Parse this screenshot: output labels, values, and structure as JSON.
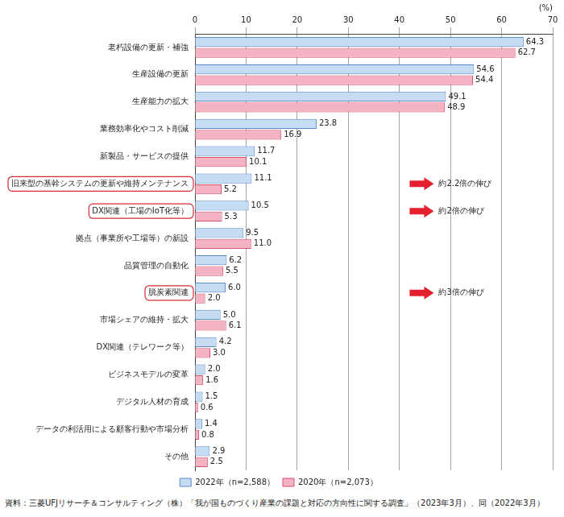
{
  "chart_data": {
    "type": "bar",
    "orientation": "horizontal",
    "xlabel": "(%)",
    "categories": [
      "老朽設備の更新・補強",
      "生産設備の更新",
      "生産能力の拡大",
      "業務効率化やコスト削減",
      "新製品・サービスの提供",
      "旧来型の基幹システムの更新や維持メンテナンス",
      "DX関連（工場のIoT化等）",
      "拠点（事業所や工場等）の新設",
      "品質管理の自動化",
      "脱炭素関連",
      "市場シェアの維持・拡大",
      "DX関連（テレワーク等）",
      "ビジネスモデルの変革",
      "デジタル人材の育成",
      "データの利活用による顧客行動や市場分析",
      "その他"
    ],
    "series": [
      {
        "name": "2022年（n=2,588）",
        "color": "#c6dcf3",
        "values": [
          64.3,
          54.6,
          49.1,
          23.8,
          11.7,
          11.1,
          10.5,
          9.5,
          6.2,
          6.0,
          5.0,
          4.2,
          2.0,
          1.5,
          1.4,
          2.9
        ],
        "value_labels": [
          "64.3",
          "54.6",
          "49.1",
          "23.8",
          "11.7",
          "11.1",
          "10.5",
          "9.5",
          "6.2",
          "6.0",
          "5.0",
          "4.2",
          "2.0",
          "1.5",
          "1.4",
          "2.9"
        ]
      },
      {
        "name": "2020年（n=2,073）",
        "color": "#f4b3c2",
        "values": [
          62.7,
          54.4,
          48.9,
          16.9,
          10.1,
          5.2,
          5.3,
          11.0,
          5.5,
          2.0,
          6.1,
          3.0,
          1.6,
          0.6,
          0.8,
          2.5
        ],
        "value_labels": [
          "62.7",
          "54.4",
          "48.9",
          "16.9",
          "10.1",
          "5.2",
          "5.3",
          "11.0",
          "5.5",
          "2.0",
          "6.1",
          "3.0",
          "1.6",
          "0.6",
          "0.8",
          "2.5"
        ]
      }
    ],
    "xlim": [
      0,
      70
    ],
    "xticks": [
      0,
      10,
      20,
      30,
      40,
      50,
      60,
      70
    ],
    "grid": true,
    "legend": "bottom",
    "data_labels": true,
    "annotations": [
      {
        "category": "旧来型の基幹システムの更新や維持メンテナンス",
        "text": "約2.2倍の伸び"
      },
      {
        "category": "DX関連（工場のIoT化等）",
        "text": "約2倍の伸び"
      },
      {
        "category": "脱炭素関連",
        "text": "約3倍の伸び"
      }
    ],
    "source": "資料：三菱UFJリサーチ＆コンサルティング（株）「我が国ものづくり産業の課題と対応の方向性に関する調査」（2023年3月）、同（2022年3月）"
  }
}
